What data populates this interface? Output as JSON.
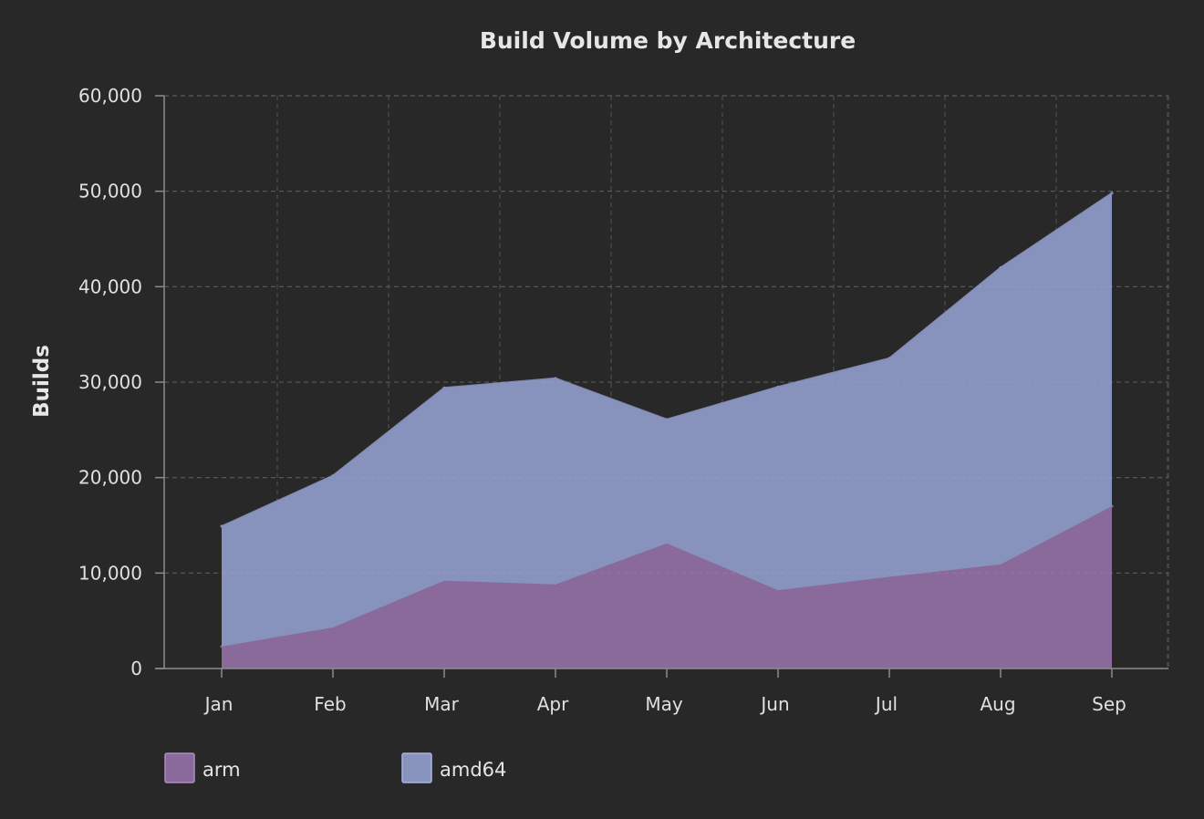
{
  "chart_data": {
    "type": "area",
    "stacked": true,
    "title": "Build Volume by Architecture",
    "xlabel": "",
    "ylabel": "Builds",
    "categories": [
      "Jan",
      "Feb",
      "Mar",
      "Apr",
      "May",
      "Jun",
      "Jul",
      "Aug",
      "Sep"
    ],
    "ylim": [
      0,
      60000
    ],
    "yticks": [
      0,
      10000,
      20000,
      30000,
      40000,
      50000,
      60000
    ],
    "ytick_labels": [
      "0",
      "10,000",
      "20,000",
      "30,000",
      "40,000",
      "50,000",
      "60,000"
    ],
    "grid": true,
    "legend_position": "bottom-left",
    "series": [
      {
        "name": "arm",
        "values": [
          2300,
          4300,
          9200,
          8800,
          13100,
          8200,
          9600,
          10900,
          17000
        ],
        "color": "#8a6a9a"
      },
      {
        "name": "amd64",
        "values": [
          12600,
          15900,
          20200,
          21600,
          13000,
          21300,
          22900,
          31100,
          32800
        ],
        "color": "#8792bd"
      }
    ]
  },
  "colors": {
    "background": "#282828",
    "grid": "#4a4a4a",
    "axis": "#8c8c8c",
    "text": "#e6e6e6"
  }
}
